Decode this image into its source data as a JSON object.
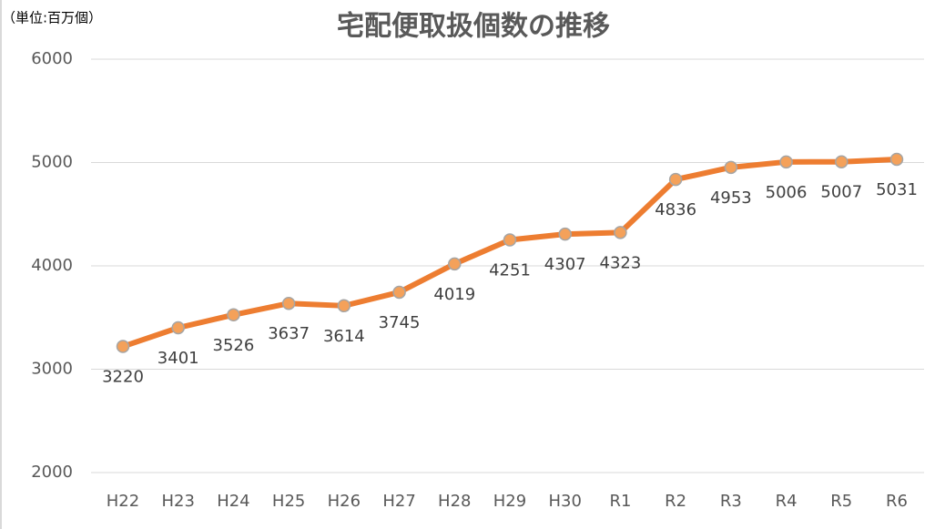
{
  "chart_data": {
    "type": "line",
    "title": "宅配便取扱個数の推移",
    "unit_label": "（単位:百万個）",
    "categories": [
      "H22",
      "H23",
      "H24",
      "H25",
      "H26",
      "H27",
      "H28",
      "H29",
      "H30",
      "R1",
      "R2",
      "R3",
      "R4",
      "R5",
      "R6"
    ],
    "series": [
      {
        "name": "宅配便取扱個数",
        "color": "#ed7d31",
        "marker_color": "#f4a15a",
        "values": [
          3220,
          3401,
          3526,
          3637,
          3614,
          3745,
          4019,
          4251,
          4307,
          4323,
          4836,
          4953,
          5006,
          5007,
          5031
        ]
      }
    ],
    "ylim": [
      2000,
      6000
    ],
    "yticks": [
      2000,
      3000,
      4000,
      5000,
      6000
    ],
    "grid": true,
    "legend": false
  }
}
